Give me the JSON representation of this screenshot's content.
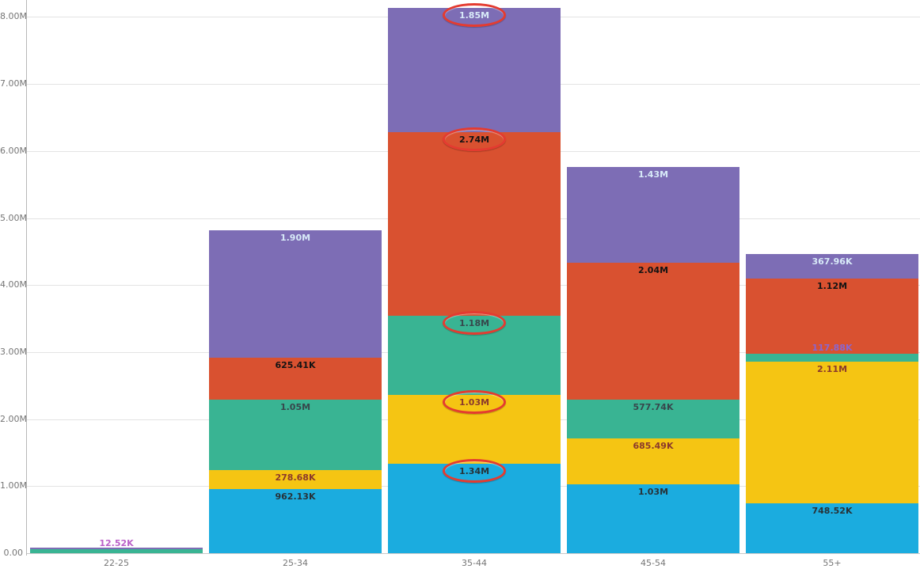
{
  "chart_data": {
    "type": "bar",
    "stacked": true,
    "orientation": "vertical",
    "title": "",
    "xlabel": "",
    "ylabel": "",
    "legend": "none",
    "grid": true,
    "categories": [
      "22-25",
      "25-34",
      "35-44",
      "45-54",
      "55+"
    ],
    "y_axis": {
      "min": 0,
      "max": 8000000,
      "tick_labels": [
        "0.00",
        "1.00M",
        "2.00M",
        "3.00M",
        "4.00M",
        "5.00M",
        "6.00M",
        "7.00M",
        "8.00M"
      ]
    },
    "series": [
      {
        "id": "series-blue",
        "color": "#1BACDF",
        "label_color": "#273238",
        "points": [
          {
            "category": "22-25",
            "value": null,
            "label": ""
          },
          {
            "category": "25-34",
            "value": 962130,
            "label": "962.13K"
          },
          {
            "category": "35-44",
            "value": 1340000,
            "label": "1.34M"
          },
          {
            "category": "45-54",
            "value": 1030000,
            "label": "1.03M"
          },
          {
            "category": "55+",
            "value": 748520,
            "label": "748.52K"
          }
        ]
      },
      {
        "id": "series-yellow",
        "color": "#F5C513",
        "label_color": "#8A392C",
        "points": [
          {
            "category": "22-25",
            "value": null,
            "label": ""
          },
          {
            "category": "25-34",
            "value": 278680,
            "label": "278.68K"
          },
          {
            "category": "35-44",
            "value": 1030000,
            "label": "1.03M"
          },
          {
            "category": "45-54",
            "value": 685490,
            "label": "685.49K"
          },
          {
            "category": "55+",
            "value": 2110000,
            "label": "2.11M"
          }
        ]
      },
      {
        "id": "series-green",
        "color": "#39B493",
        "label_color": "#37474C",
        "points": [
          {
            "category": "22-25",
            "value": 12520,
            "label": "12.52K",
            "px": 5,
            "label_outside": true,
            "outside_label_color": "#BA5FC8"
          },
          {
            "category": "25-34",
            "value": 1050000,
            "label": "1.05M"
          },
          {
            "category": "35-44",
            "value": 1180000,
            "label": "1.18M"
          },
          {
            "category": "45-54",
            "value": 577740,
            "label": "577.74K"
          },
          {
            "category": "55+",
            "value": 117880,
            "label": "117.88K",
            "label_outside": true,
            "outside_label_color": "#8A66CE"
          }
        ]
      },
      {
        "id": "series-orange",
        "color": "#D95130",
        "label_color": "#131313",
        "points": [
          {
            "category": "22-25",
            "value": null,
            "label": ""
          },
          {
            "category": "25-34",
            "value": 625410,
            "label": "625.41K"
          },
          {
            "category": "35-44",
            "value": 2740000,
            "label": "2.74M"
          },
          {
            "category": "45-54",
            "value": 2040000,
            "label": "2.04M"
          },
          {
            "category": "55+",
            "value": 1120000,
            "label": "1.12M"
          }
        ]
      },
      {
        "id": "series-purple",
        "color": "#7D6DB5",
        "label_color": "#D8EAF8",
        "points": [
          {
            "category": "22-25",
            "value": null,
            "label": "",
            "px": 2
          },
          {
            "category": "25-34",
            "value": 1900000,
            "label": "1.90M"
          },
          {
            "category": "35-44",
            "value": 1850000,
            "label": "1.85M"
          },
          {
            "category": "45-54",
            "value": 1430000,
            "label": "1.43M"
          },
          {
            "category": "55+",
            "value": 367960,
            "label": "367.96K"
          }
        ]
      }
    ],
    "annotations": {
      "shape": "ellipse",
      "color": "#E43B30",
      "target_category": "35-44",
      "circled_labels": [
        "1.85M",
        "2.74M",
        "1.18M",
        "1.03M",
        "1.34M"
      ]
    },
    "style_colors": {
      "background": "#FFFFFF",
      "grid_color": "#E3E3E3",
      "baseline_color": "#C9C9C9",
      "axis_line_color": "#B8B8B8",
      "tick_text_color": "#757575"
    }
  }
}
